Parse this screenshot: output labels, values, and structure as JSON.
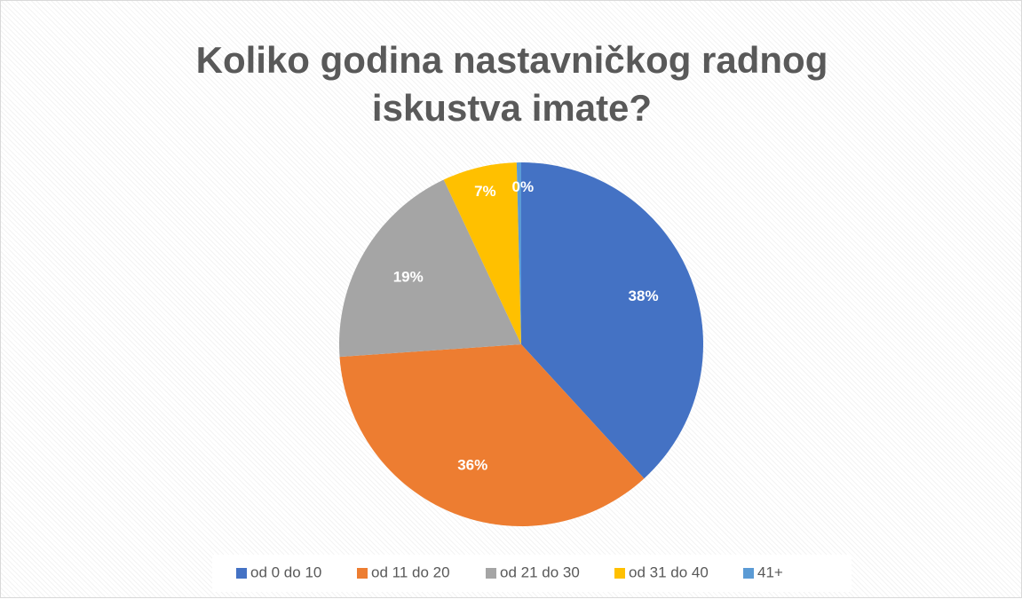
{
  "chart_data": {
    "type": "pie",
    "title": "Koliko godina nastavničkog radnog iskustva imate?",
    "categories": [
      "od 0 do 10",
      "od 11 do 20",
      "od 21 do 30",
      "od 31 do 40",
      "41+"
    ],
    "values": [
      38.2,
      35.7,
      19.1,
      6.6,
      0.4
    ],
    "value_labels": [
      "38%",
      "36%",
      "19%",
      "7%",
      "0%"
    ],
    "colors": [
      "#4472c4",
      "#ed7d31",
      "#a5a5a5",
      "#ffc000",
      "#5b9bd5"
    ],
    "legend": "bottom"
  }
}
